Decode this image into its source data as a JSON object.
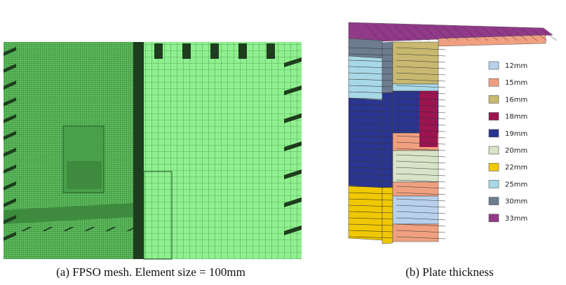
{
  "figure": {
    "panels": [
      {
        "caption": "(a) FPSO mesh. Element size = 100mm"
      },
      {
        "caption": "(b) Plate thickness",
        "legend": [
          {
            "label": "12mm",
            "color": "#b8d0ec"
          },
          {
            "label": "15mm",
            "color": "#f0a080"
          },
          {
            "label": "16mm",
            "color": "#c8b870"
          },
          {
            "label": "18mm",
            "color": "#9c1450"
          },
          {
            "label": "19mm",
            "color": "#2a3590"
          },
          {
            "label": "20mm",
            "color": "#d8e4c8"
          },
          {
            "label": "22mm",
            "color": "#f0c800"
          },
          {
            "label": "25mm",
            "color": "#a8d8e8"
          },
          {
            "label": "30mm",
            "color": "#6e7c90"
          },
          {
            "label": "33mm",
            "color": "#903a88"
          }
        ]
      }
    ]
  }
}
